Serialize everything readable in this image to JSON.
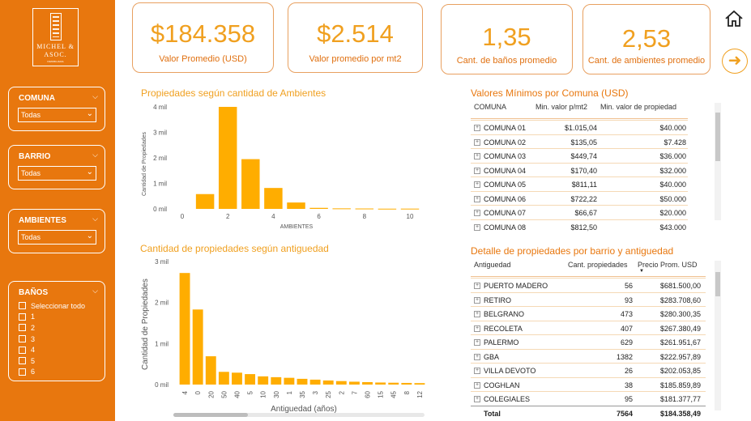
{
  "logo": {
    "line1": "MICHEL &",
    "line2": "ASOC.",
    "line3": "INMOBILIARIA"
  },
  "slicers": {
    "comuna": {
      "title": "COMUNA",
      "value": "Todas"
    },
    "barrio": {
      "title": "BARRIO",
      "value": "Todas"
    },
    "ambientes": {
      "title": "AMBIENTES",
      "value": "Todas"
    },
    "banos": {
      "title": "BAÑOS",
      "options": [
        "Seleccionar todo",
        "1",
        "2",
        "3",
        "4",
        "5",
        "6"
      ]
    }
  },
  "kpis": [
    {
      "value": "$184.358",
      "label": "Valor Promedio (USD)"
    },
    {
      "value": "$2.514",
      "label": "Valor promedio por mt2"
    },
    {
      "value": "1,35",
      "label": "Cant. de baños promedio"
    },
    {
      "value": "2,53",
      "label": "Cant. de ambientes promedio"
    }
  ],
  "icons": {
    "home": "home-icon",
    "next": "arrow-right-icon"
  },
  "colors": {
    "accent": "#e8770e",
    "bar": "#ffad00",
    "kpi_text": "#f0a020"
  },
  "chart_data": [
    {
      "type": "bar",
      "title": "Propiedades según cantidad de Ambientes",
      "xlabel": "AMBIENTES",
      "ylabel": "Cantidad de Propiedades",
      "x": [
        1,
        2,
        3,
        4,
        5,
        6,
        7,
        8,
        9,
        10
      ],
      "values": [
        580,
        4000,
        1950,
        820,
        250,
        40,
        20,
        15,
        8,
        10
      ],
      "xticks": [
        "0",
        "2",
        "4",
        "6",
        "8",
        "10"
      ],
      "yticks": [
        "0 mil",
        "1 mil",
        "2 mil",
        "3 mil",
        "4 mil"
      ],
      "ylim": [
        0,
        4000
      ]
    },
    {
      "type": "bar",
      "title": "Cantidad de propiedades según antiguedad",
      "xlabel": "Antiguedad (años)",
      "ylabel": "Cantidad de Propiedades",
      "categories": [
        "4",
        "0",
        "20",
        "50",
        "40",
        "5",
        "10",
        "30",
        "1",
        "35",
        "3",
        "25",
        "2",
        "7",
        "60",
        "15",
        "45",
        "8",
        "12"
      ],
      "values": [
        2720,
        1830,
        690,
        310,
        290,
        255,
        200,
        180,
        165,
        140,
        120,
        100,
        85,
        70,
        60,
        50,
        45,
        40,
        35
      ],
      "yticks": [
        "0 mil",
        "1 mil",
        "2 mil",
        "3 mil"
      ],
      "ylim": [
        0,
        3000
      ]
    }
  ],
  "table_min": {
    "title": "Valores Mínimos por Comuna (USD)",
    "headers": [
      "COMUNA",
      "Min. valor p/mt2",
      "Min. valor de propiedad"
    ],
    "rows": [
      [
        "COMUNA 01",
        "$1.015,04",
        "$40.000"
      ],
      [
        "COMUNA 02",
        "$135,05",
        "$7.428"
      ],
      [
        "COMUNA 03",
        "$449,74",
        "$36.000"
      ],
      [
        "COMUNA 04",
        "$170,40",
        "$32.000"
      ],
      [
        "COMUNA 05",
        "$811,11",
        "$40.000"
      ],
      [
        "COMUNA 06",
        "$722,22",
        "$50.000"
      ],
      [
        "COMUNA 07",
        "$66,67",
        "$20.000"
      ],
      [
        "COMUNA 08",
        "$812,50",
        "$43.000"
      ]
    ]
  },
  "table_detail": {
    "title": "Detalle de propiedades por barrio y antiguedad",
    "headers": [
      "Antiguedad",
      "Cant. propiedades",
      "Precio Prom. USD"
    ],
    "rows": [
      [
        "PUERTO MADERO",
        "56",
        "$681.500,00"
      ],
      [
        "RETIRO",
        "93",
        "$283.708,60"
      ],
      [
        "BELGRANO",
        "473",
        "$280.300,35"
      ],
      [
        "RECOLETA",
        "407",
        "$267.380,49"
      ],
      [
        "PALERMO",
        "629",
        "$261.951,67"
      ],
      [
        "GBA",
        "1382",
        "$222.957,89"
      ],
      [
        "VILLA DEVOTO",
        "26",
        "$202.053,85"
      ],
      [
        "COGHLAN",
        "38",
        "$185.859,89"
      ],
      [
        "COLEGIALES",
        "95",
        "$181.377,77"
      ]
    ],
    "total": [
      "Total",
      "7564",
      "$184.358,49"
    ]
  }
}
